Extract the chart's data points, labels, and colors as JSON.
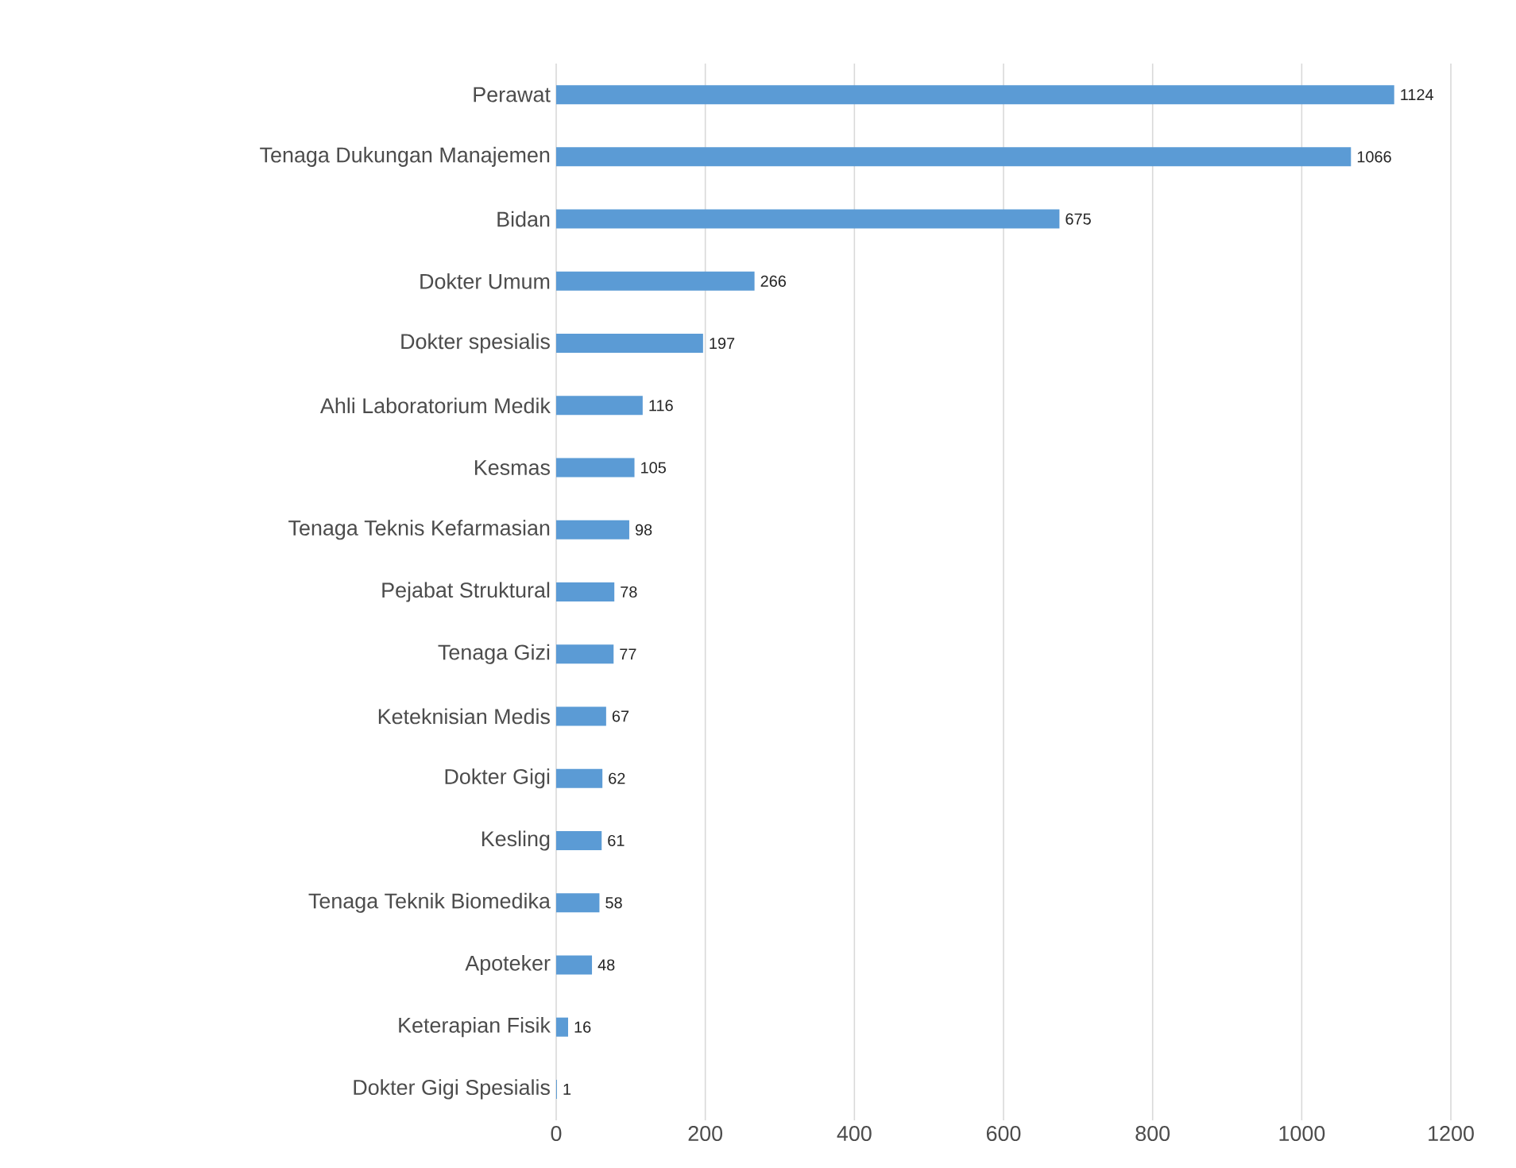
{
  "chart_data": {
    "type": "bar",
    "orientation": "horizontal",
    "categories": [
      "Perawat",
      "Tenaga Dukungan Manajemen",
      "Bidan",
      "Dokter Umum",
      "Dokter spesialis",
      "Ahli Laboratorium Medik",
      "Kesmas",
      "Tenaga Teknis Kefarmasian",
      "Pejabat Struktural",
      "Tenaga Gizi",
      "Keteknisian Medis",
      "Dokter Gigi",
      "Kesling",
      "Tenaga Teknik Biomedika",
      "Apoteker",
      "Keterapian Fisik",
      "Dokter Gigi Spesialis"
    ],
    "values": [
      1124,
      1066,
      675,
      266,
      197,
      116,
      105,
      98,
      78,
      77,
      67,
      62,
      61,
      58,
      48,
      16,
      1
    ],
    "color": "#5b9bd5",
    "xlim": [
      0,
      1200
    ],
    "xticks": [
      0,
      200,
      400,
      600,
      800,
      1000,
      1200
    ],
    "grid": "x",
    "data_labels": true
  }
}
